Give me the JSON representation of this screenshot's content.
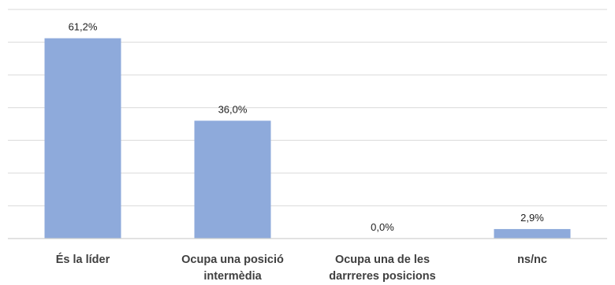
{
  "chart_data": {
    "type": "bar",
    "categories": [
      [
        "És la líder"
      ],
      [
        "Ocupa una posició",
        "intermèdia"
      ],
      [
        "Ocupa una de les",
        "darrreres posicions"
      ],
      [
        "ns/nc"
      ]
    ],
    "values": [
      61.2,
      36.0,
      0.0,
      2.9
    ],
    "data_labels": [
      "61,2%",
      "36,0%",
      "0,0%",
      "2,9%"
    ],
    "title": "",
    "xlabel": "",
    "ylabel": "",
    "ylim": [
      0,
      70
    ],
    "grid": true,
    "bar_color": "#8eaadb"
  }
}
